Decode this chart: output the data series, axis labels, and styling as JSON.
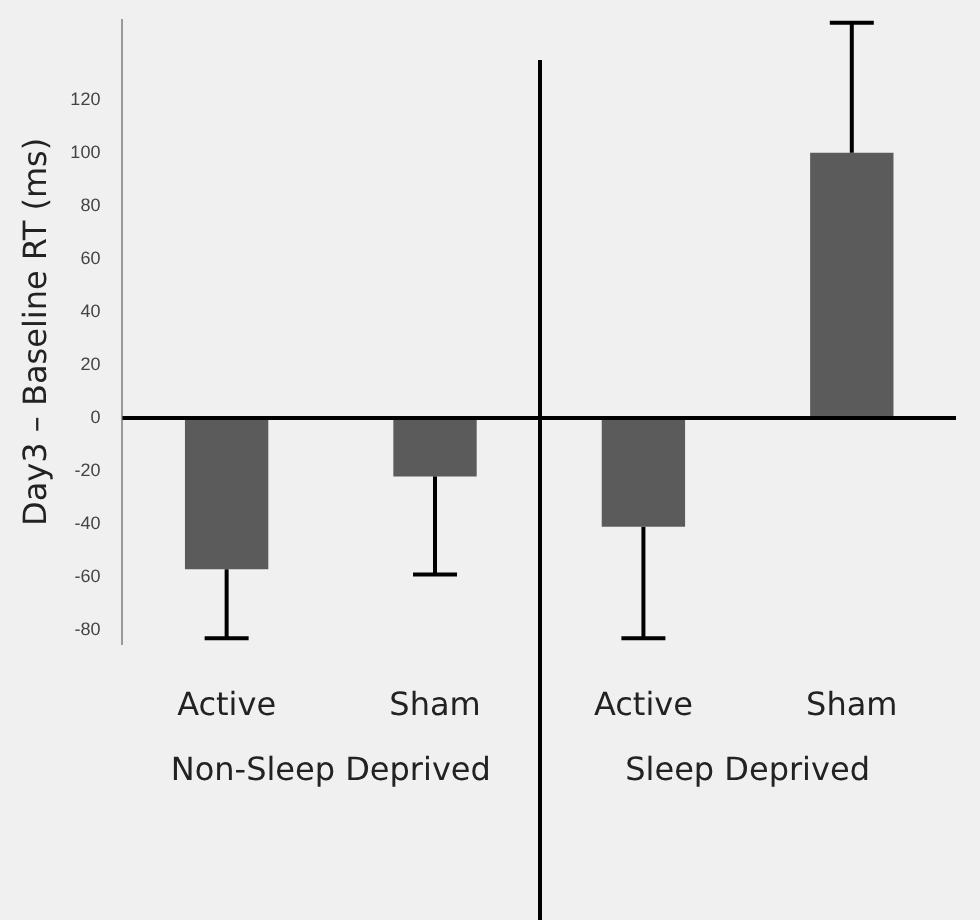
{
  "chart_data": {
    "type": "bar",
    "ylabel": "Day3 – Baseline RT (ms)",
    "categories": [
      "Active",
      "Sham",
      "Active",
      "Sham"
    ],
    "values": [
      -57,
      -22,
      -41,
      100
    ],
    "errors": [
      [
        -83,
        -57
      ],
      [
        -59,
        -22
      ],
      [
        -83,
        -41
      ],
      [
        100,
        149
      ]
    ],
    "color": "#5b5b5b",
    "ylim": [
      -85,
      150
    ],
    "yticks": [
      -80,
      -60,
      -40,
      -20,
      0,
      20,
      40,
      60,
      80,
      100,
      120
    ],
    "grid": false,
    "ref_lines": [
      {
        "axis": "y",
        "value": 0,
        "color": "#000000"
      }
    ],
    "legend": false,
    "annotations": [
      "Non-Sleep Deprived",
      "Sleep Deprived"
    ]
  }
}
